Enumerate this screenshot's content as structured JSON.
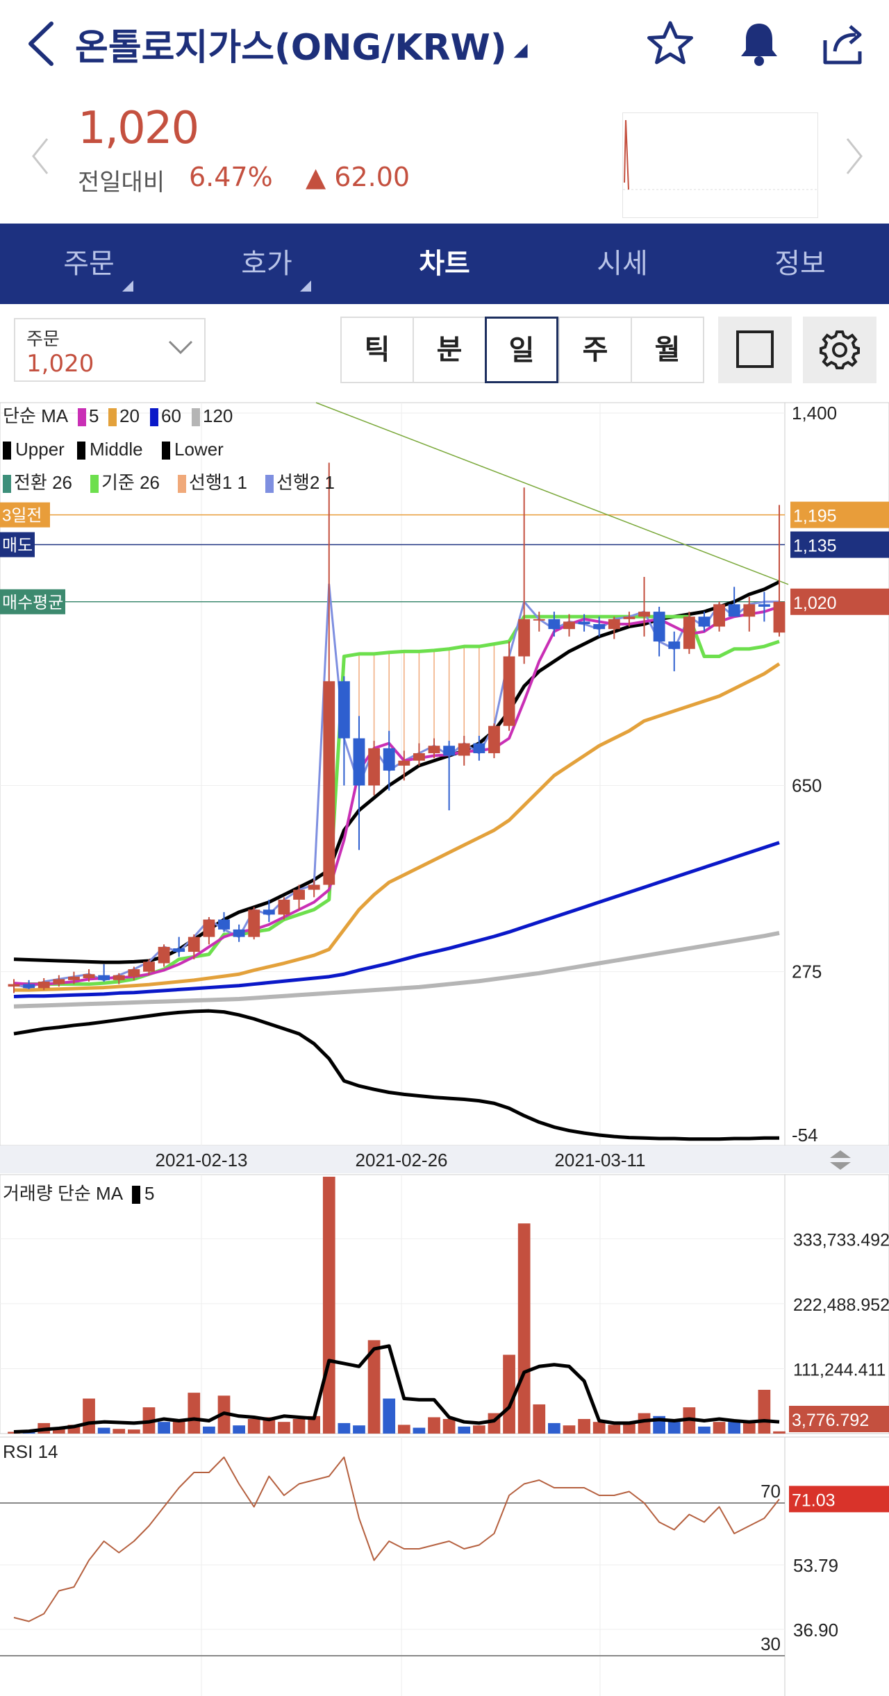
{
  "header": {
    "title": "온톨로지가스(ONG/KRW)",
    "title_marker": "◢",
    "icons": [
      "chevron-left-icon",
      "star-icon",
      "bell-icon",
      "share-icon"
    ]
  },
  "quote": {
    "price": "1,020",
    "compare_label": "전일대비",
    "change_pct": "6.47%",
    "change_value": "▲ 62.00",
    "color_up": "#c4503f"
  },
  "tabs": [
    {
      "label": "주문",
      "has_menu": true
    },
    {
      "label": "호가",
      "has_menu": true
    },
    {
      "label": "차트",
      "active": true
    },
    {
      "label": "시세"
    },
    {
      "label": "정보"
    }
  ],
  "toolbar": {
    "select_label": "주문",
    "select_value": "1,020",
    "periods": [
      "틱",
      "분",
      "일",
      "주",
      "월"
    ],
    "active_period": "일"
  },
  "legend": {
    "ma_title": "단순 MA",
    "ma_items": [
      {
        "label": "5",
        "color": "#c92fb5"
      },
      {
        "label": "20",
        "color": "#e3a13b"
      },
      {
        "label": "60",
        "color": "#0a18c8"
      },
      {
        "label": "120",
        "color": "#b5b5b5"
      }
    ],
    "bb_items": [
      "Upper",
      "Middle",
      "Lower"
    ],
    "ichimoku_items": [
      {
        "label": "전환 26",
        "color": "#3d8f7a"
      },
      {
        "label": "기준 26",
        "color": "#6ddf4d"
      },
      {
        "label": "선행1 1",
        "color": "#f0a97a"
      },
      {
        "label": "선행2 1",
        "color": "#7e8fe0"
      }
    ]
  },
  "price_lines": [
    {
      "label": "3일전",
      "value": "1,195",
      "price": 1195,
      "color": "#e89d3a"
    },
    {
      "label": "매도",
      "value": "1,135",
      "price": 1135,
      "color": "#1d3180"
    },
    {
      "label": "매수평균",
      "value": "1,020",
      "price": 1020,
      "color": "#3d8a6f",
      "value_color": "#c4503f"
    }
  ],
  "chart_data": {
    "type": "candlestick",
    "price_axis": {
      "labels": [
        "1,400",
        "650",
        "275",
        "-54"
      ],
      "values": [
        1400,
        650,
        275,
        -54
      ]
    },
    "x_labels": [
      "2021-02-13",
      "2021-02-26",
      "2021-03-11"
    ],
    "candles_ohlc": [
      [
        245,
        260,
        232,
        250
      ],
      [
        250,
        258,
        240,
        242
      ],
      [
        242,
        262,
        238,
        255
      ],
      [
        250,
        268,
        245,
        260
      ],
      [
        258,
        275,
        250,
        265
      ],
      [
        262,
        280,
        255,
        270
      ],
      [
        268,
        290,
        255,
        258
      ],
      [
        258,
        272,
        250,
        268
      ],
      [
        265,
        285,
        258,
        280
      ],
      [
        275,
        300,
        268,
        295
      ],
      [
        292,
        330,
        285,
        325
      ],
      [
        322,
        345,
        305,
        315
      ],
      [
        315,
        350,
        300,
        345
      ],
      [
        345,
        385,
        330,
        380
      ],
      [
        380,
        395,
        355,
        360
      ],
      [
        360,
        370,
        335,
        345
      ],
      [
        345,
        405,
        340,
        400
      ],
      [
        400,
        420,
        375,
        390
      ],
      [
        390,
        425,
        380,
        420
      ],
      [
        420,
        450,
        400,
        440
      ],
      [
        440,
        460,
        425,
        450
      ],
      [
        450,
        1300,
        445,
        860
      ],
      [
        860,
        870,
        650,
        745
      ],
      [
        745,
        790,
        520,
        650
      ],
      [
        650,
        740,
        630,
        725
      ],
      [
        725,
        760,
        640,
        680
      ],
      [
        690,
        720,
        660,
        700
      ],
      [
        700,
        735,
        690,
        715
      ],
      [
        715,
        745,
        705,
        730
      ],
      [
        730,
        740,
        600,
        710
      ],
      [
        710,
        750,
        690,
        735
      ],
      [
        735,
        750,
        700,
        715
      ],
      [
        715,
        775,
        705,
        770
      ],
      [
        770,
        940,
        760,
        910
      ],
      [
        910,
        1250,
        895,
        985
      ],
      [
        985,
        1000,
        960,
        985
      ],
      [
        985,
        1000,
        950,
        965
      ],
      [
        965,
        995,
        950,
        980
      ],
      [
        980,
        995,
        960,
        975
      ],
      [
        975,
        990,
        950,
        965
      ],
      [
        965,
        990,
        945,
        985
      ],
      [
        985,
        1000,
        970,
        990
      ],
      [
        990,
        1070,
        950,
        1000
      ],
      [
        1000,
        1010,
        910,
        940
      ],
      [
        940,
        960,
        880,
        925
      ],
      [
        925,
        1000,
        915,
        990
      ],
      [
        990,
        1000,
        960,
        970
      ],
      [
        970,
        1020,
        960,
        1015
      ],
      [
        1015,
        1050,
        990,
        990
      ],
      [
        990,
        1030,
        960,
        1015
      ],
      [
        1015,
        1040,
        980,
        1010
      ],
      [
        958,
        1215,
        950,
        1020
      ]
    ],
    "overlays": {
      "ma5": [
        252,
        250,
        250,
        252,
        255,
        260,
        262,
        263,
        265,
        270,
        278,
        290,
        305,
        325,
        345,
        355,
        360,
        370,
        385,
        400,
        415,
        440,
        540,
        680,
        725,
        735,
        700,
        705,
        710,
        712,
        718,
        720,
        725,
        745,
        820,
        900,
        960,
        975,
        985,
        980,
        975,
        975,
        980,
        985,
        970,
        955,
        960,
        980,
        990,
        995,
        1000,
        1010
      ],
      "ma20": [
        238,
        238,
        239,
        240,
        241,
        242,
        243,
        245,
        247,
        249,
        252,
        255,
        258,
        262,
        266,
        270,
        278,
        285,
        292,
        300,
        308,
        320,
        360,
        400,
        430,
        455,
        470,
        485,
        500,
        515,
        530,
        545,
        560,
        580,
        610,
        640,
        670,
        690,
        710,
        730,
        745,
        760,
        780,
        790,
        800,
        810,
        820,
        830,
        845,
        860,
        875,
        895
      ],
      "ma60": [
        225,
        226,
        226,
        227,
        228,
        229,
        230,
        232,
        233,
        235,
        237,
        239,
        241,
        243,
        245,
        247,
        250,
        253,
        256,
        259,
        262,
        265,
        270,
        278,
        285,
        292,
        300,
        308,
        315,
        322,
        330,
        338,
        346,
        355,
        365,
        375,
        385,
        395,
        405,
        415,
        425,
        435,
        445,
        455,
        465,
        475,
        485,
        495,
        505,
        515,
        525,
        535
      ],
      "ma120": [
        205,
        206,
        207,
        208,
        209,
        210,
        211,
        212,
        213,
        214,
        215,
        216,
        217,
        218,
        219,
        220,
        222,
        224,
        226,
        228,
        230,
        232,
        234,
        236,
        238,
        240,
        242,
        244,
        247,
        250,
        253,
        256,
        260,
        264,
        268,
        272,
        277,
        282,
        287,
        292,
        297,
        302,
        307,
        312,
        317,
        322,
        327,
        332,
        337,
        342,
        347,
        353
      ],
      "bb_upper": [
        300,
        299,
        298,
        297,
        296,
        295,
        294,
        294,
        295,
        297,
        305,
        320,
        340,
        360,
        380,
        395,
        405,
        415,
        430,
        445,
        460,
        480,
        560,
        600,
        625,
        650,
        670,
        690,
        700,
        710,
        720,
        735,
        760,
        800,
        850,
        880,
        900,
        920,
        935,
        950,
        960,
        970,
        975,
        985,
        990,
        995,
        1000,
        1010,
        1020,
        1035,
        1045,
        1060
      ],
      "bb_lower": [
        150,
        155,
        160,
        163,
        167,
        170,
        174,
        178,
        182,
        186,
        190,
        193,
        195,
        196,
        194,
        188,
        180,
        170,
        160,
        150,
        130,
        100,
        55,
        45,
        38,
        32,
        28,
        25,
        22,
        20,
        18,
        15,
        10,
        0,
        -15,
        -28,
        -38,
        -45,
        -50,
        -54,
        -57,
        -59,
        -60,
        -61,
        -61,
        -62,
        -62,
        -62,
        -61,
        -61,
        -60,
        -60
      ],
      "ichimoku_base": [
        250,
        250,
        250,
        250,
        250,
        250,
        252,
        255,
        260,
        270,
        280,
        300,
        305,
        310,
        350,
        350,
        355,
        360,
        380,
        390,
        400,
        420,
        910,
        915,
        915,
        918,
        920,
        920,
        922,
        925,
        930,
        930,
        935,
        940,
        990,
        990,
        990,
        990,
        990,
        990,
        990,
        990,
        990,
        990,
        990,
        990,
        910,
        910,
        925,
        925,
        930,
        940
      ]
    },
    "volume": {
      "title": "거래량 단순 MA",
      "ma_label": "5",
      "axis_labels": [
        "333,733.492",
        "222,488.952",
        "111,244.411"
      ],
      "axis_values": [
        333733.492,
        222488.952,
        111244.411
      ],
      "current": "3,776.792",
      "current_value": 3776.792,
      "bars": [
        3000,
        6000,
        18000,
        9000,
        15000,
        60000,
        10000,
        8000,
        7000,
        45000,
        20000,
        25000,
        70000,
        12000,
        65000,
        14000,
        25000,
        28000,
        20000,
        25000,
        30000,
        440000,
        18000,
        14000,
        160000,
        60000,
        15000,
        10000,
        28000,
        25000,
        12000,
        14000,
        35000,
        135000,
        360000,
        50000,
        18000,
        14000,
        25000,
        20000,
        15000,
        18000,
        35000,
        30000,
        20000,
        45000,
        12000,
        20000,
        20000,
        18000,
        75000,
        3776
      ],
      "bar_up": [
        true,
        false,
        true,
        true,
        true,
        true,
        false,
        true,
        true,
        true,
        false,
        true,
        true,
        false,
        true,
        false,
        true,
        true,
        true,
        true,
        true,
        true,
        false,
        false,
        true,
        false,
        true,
        false,
        true,
        true,
        false,
        true,
        true,
        true,
        true,
        true,
        false,
        true,
        true,
        true,
        true,
        true,
        true,
        false,
        false,
        true,
        false,
        true,
        false,
        true,
        true,
        true
      ],
      "ma5": [
        3000,
        4000,
        7000,
        9000,
        12000,
        18000,
        20000,
        19000,
        18000,
        20000,
        25000,
        22000,
        25000,
        22000,
        35000,
        30000,
        28000,
        24000,
        30000,
        28000,
        26000,
        125000,
        120000,
        115000,
        145000,
        150000,
        60000,
        58000,
        58000,
        28000,
        20000,
        18000,
        22000,
        45000,
        105000,
        115000,
        118000,
        115000,
        90000,
        22000,
        18000,
        18000,
        22000,
        24000,
        22000,
        25000,
        22000,
        25000,
        22000,
        20000,
        22000,
        20000
      ]
    },
    "rsi": {
      "title": "RSI 14",
      "axis_labels": [
        "53.79",
        "36.90"
      ],
      "axis_values": [
        53.79,
        36.9
      ],
      "ref_levels": [
        "70",
        "30"
      ],
      "ref_values": [
        70,
        30
      ],
      "current": "71.03",
      "current_value": 71.03,
      "values": [
        40,
        39,
        41,
        47,
        48,
        55,
        60,
        57,
        60,
        64,
        69,
        74,
        78,
        78,
        82,
        75,
        69,
        77,
        72,
        75,
        76,
        77,
        82,
        66,
        55,
        60,
        58,
        58,
        59,
        60,
        58,
        59,
        62,
        72,
        75,
        76,
        74,
        74,
        74,
        72,
        72,
        73,
        70,
        65,
        63,
        67,
        65,
        69,
        62,
        64,
        66,
        71
      ]
    }
  }
}
